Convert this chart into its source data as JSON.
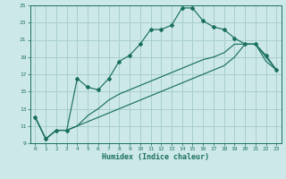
{
  "xlabel": "Humidex (Indice chaleur)",
  "bg_color": "#cde8e8",
  "grid_color": "#a8cece",
  "line_color": "#1a7060",
  "x_values": [
    0,
    1,
    2,
    3,
    4,
    5,
    6,
    7,
    8,
    9,
    10,
    11,
    12,
    13,
    14,
    15,
    16,
    17,
    18,
    19,
    20,
    21,
    22,
    23
  ],
  "series1": [
    12,
    9.5,
    10.5,
    10.5,
    16.5,
    15.5,
    15.2,
    16.5,
    18.5,
    19.2,
    20.5,
    22.2,
    22.2,
    22.7,
    24.7,
    24.7,
    23.2,
    22.5,
    22.2,
    21.2,
    20.5,
    20.5,
    19.2,
    17.5
  ],
  "series2": [
    12,
    9.5,
    10.5,
    10.5,
    11.0,
    12.2,
    13.0,
    14.0,
    14.7,
    15.2,
    15.7,
    16.2,
    16.7,
    17.2,
    17.7,
    18.2,
    18.7,
    19.0,
    19.5,
    20.5,
    20.5,
    20.5,
    19.0,
    17.5
  ],
  "series3": [
    12,
    9.5,
    10.5,
    10.5,
    11.0,
    11.5,
    12.0,
    12.5,
    13.0,
    13.5,
    14.0,
    14.5,
    15.0,
    15.5,
    16.0,
    16.5,
    17.0,
    17.5,
    18.0,
    19.0,
    20.5,
    20.5,
    18.5,
    17.5
  ],
  "ylim": [
    9,
    25
  ],
  "yticks": [
    9,
    11,
    13,
    15,
    17,
    19,
    21,
    23,
    25
  ],
  "xlim": [
    -0.5,
    23.5
  ]
}
